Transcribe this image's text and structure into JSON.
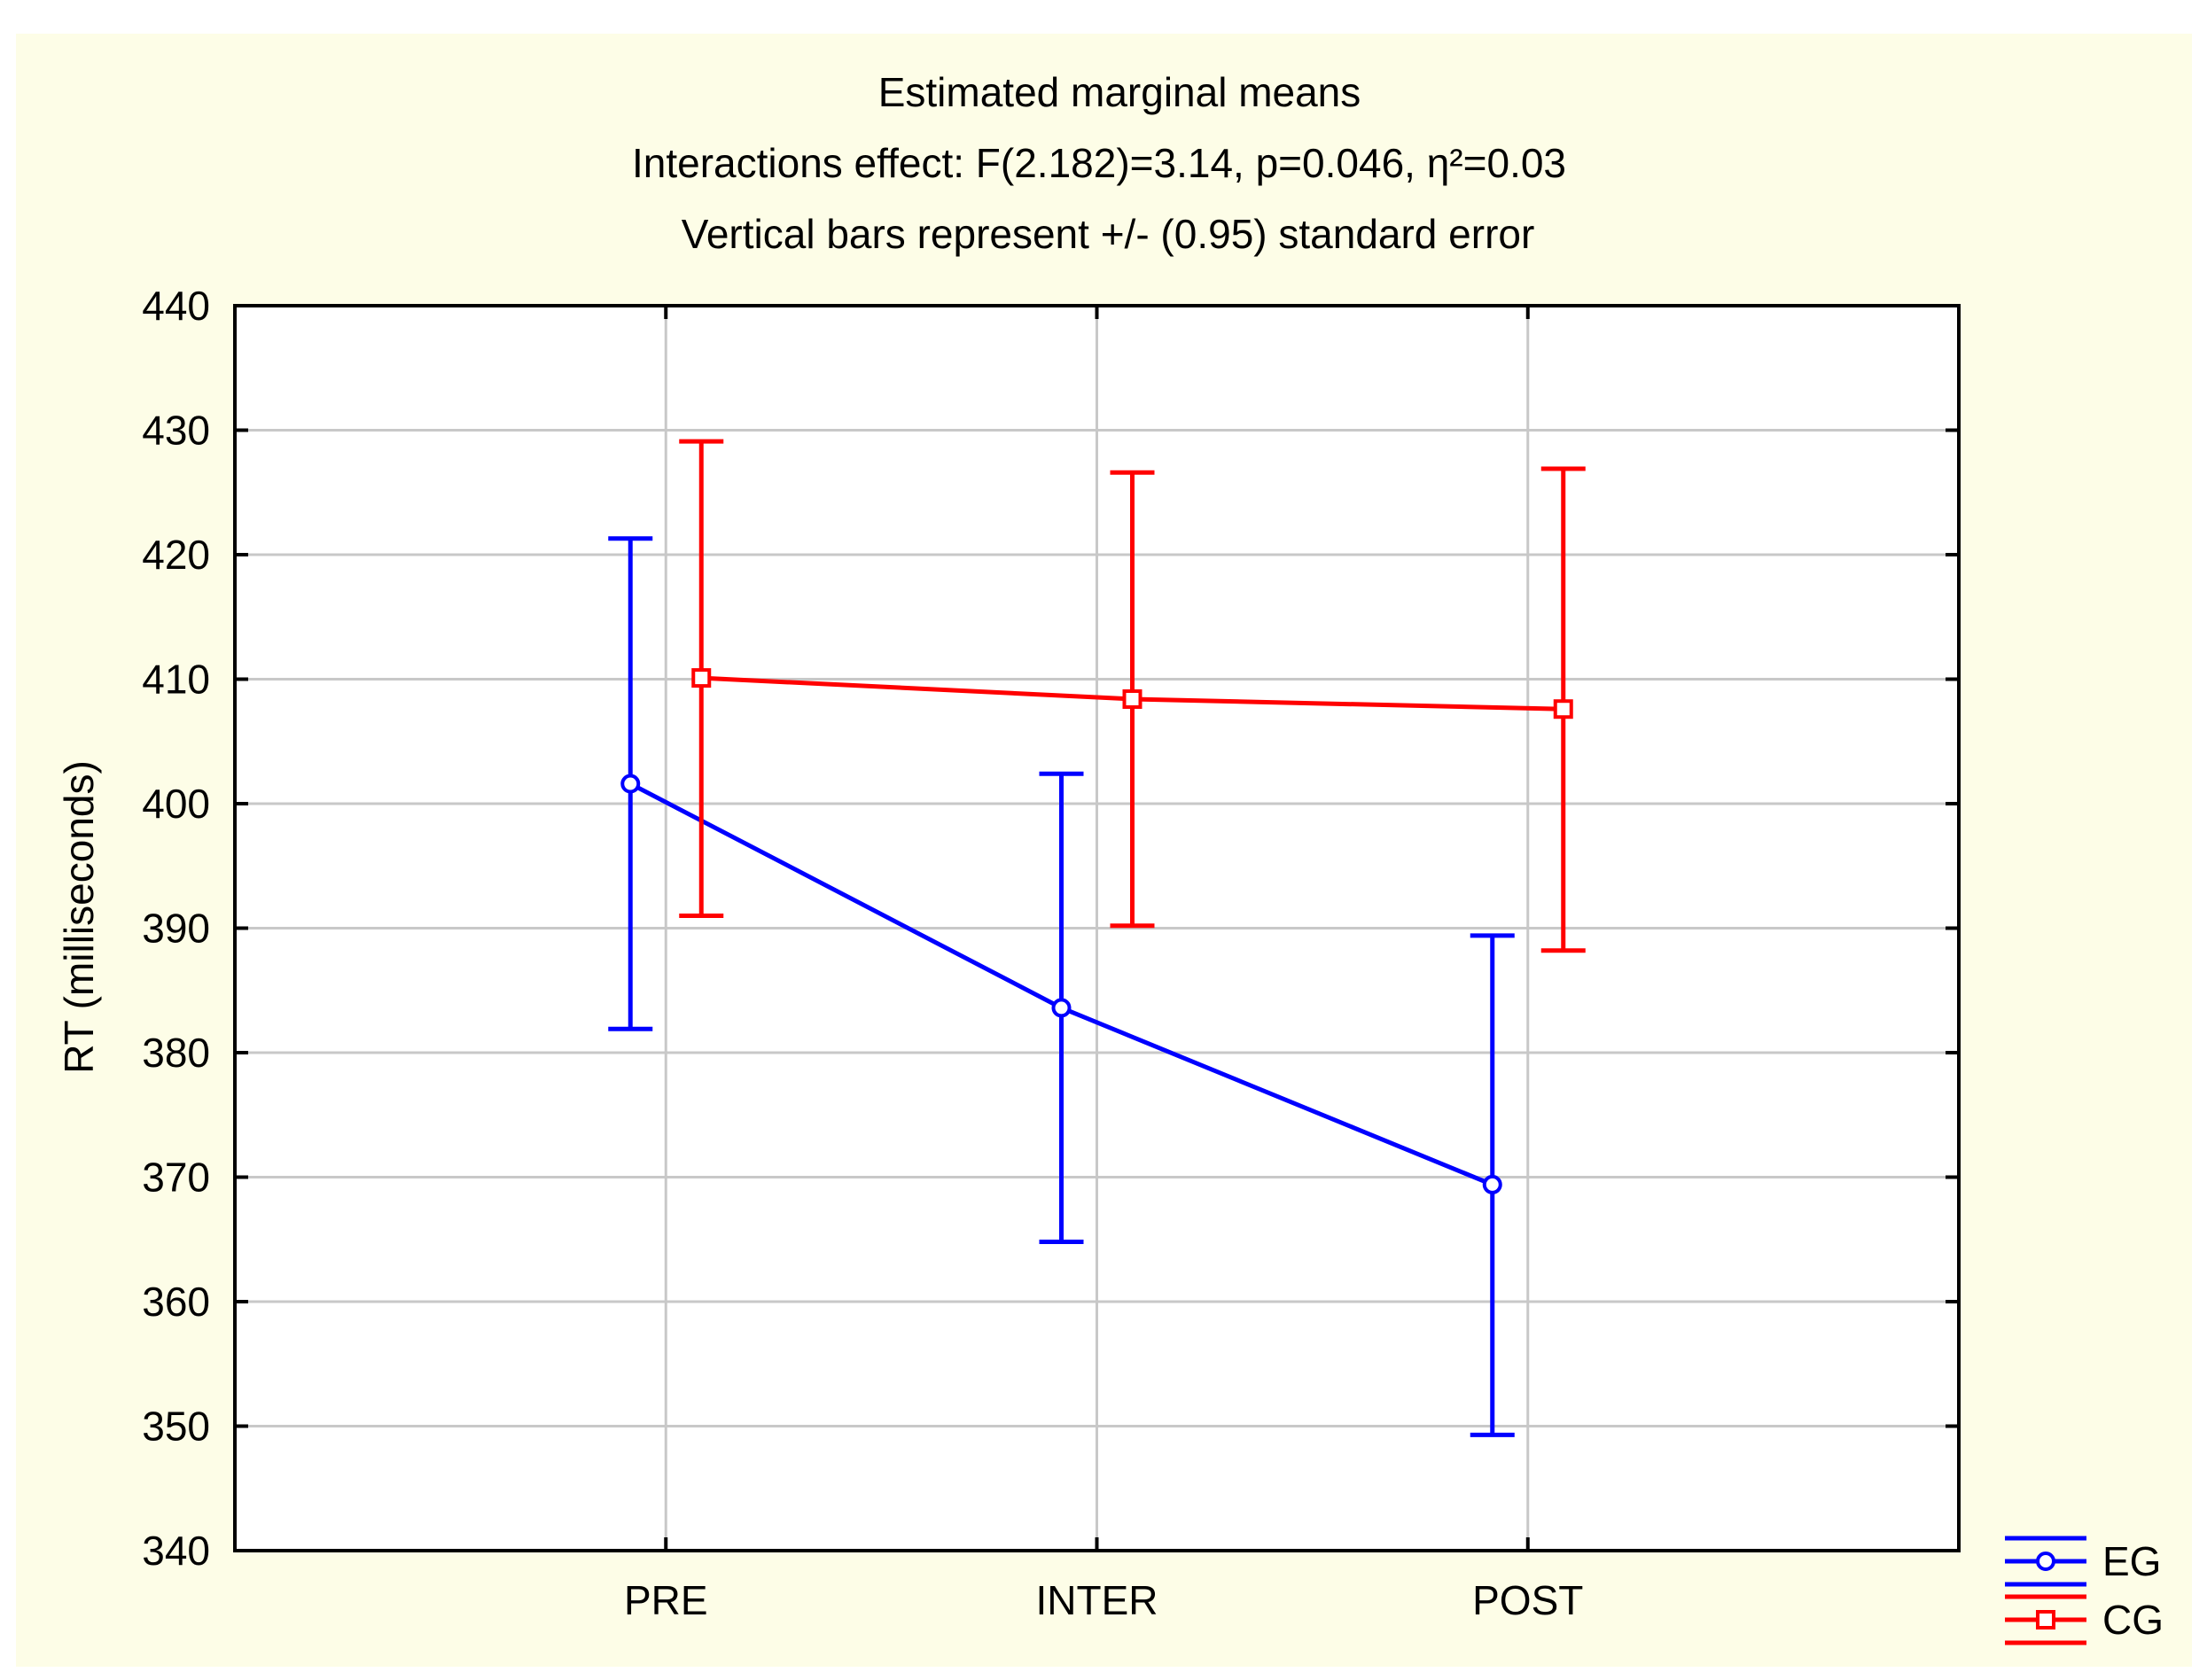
{
  "chart_data": {
    "type": "line",
    "title": "Estimated marginal means",
    "subtitle_lines": [
      "Interactions effect: F(2.182)=3.14, p=0.046, η²=0.03",
      "Vertical bars represent +/- (0.95) standard error"
    ],
    "xlabel": "",
    "ylabel": "RT (milliseconds)",
    "categories": [
      "PRE",
      "INTER",
      "POST"
    ],
    "ylim": [
      340,
      440
    ],
    "yticks": [
      340,
      350,
      360,
      370,
      380,
      390,
      400,
      410,
      420,
      430,
      440
    ],
    "grid": true,
    "legend_position": "bottom-right outside",
    "series": [
      {
        "name": "EG",
        "color": "#0000ff",
        "marker": "circle",
        "values": [
          401.6,
          383.6,
          369.4
        ],
        "error_low": [
          381.9,
          364.8,
          349.3
        ],
        "error_high": [
          421.3,
          402.4,
          389.4
        ]
      },
      {
        "name": "CG",
        "color": "#ff0000",
        "marker": "square",
        "values": [
          410.1,
          408.4,
          407.6
        ],
        "error_low": [
          391.0,
          390.2,
          388.2
        ],
        "error_high": [
          429.1,
          426.6,
          426.9
        ]
      }
    ],
    "colors": {
      "background": "#fdfde7",
      "grid": "#c8c8c8",
      "axis": "#000000"
    }
  }
}
